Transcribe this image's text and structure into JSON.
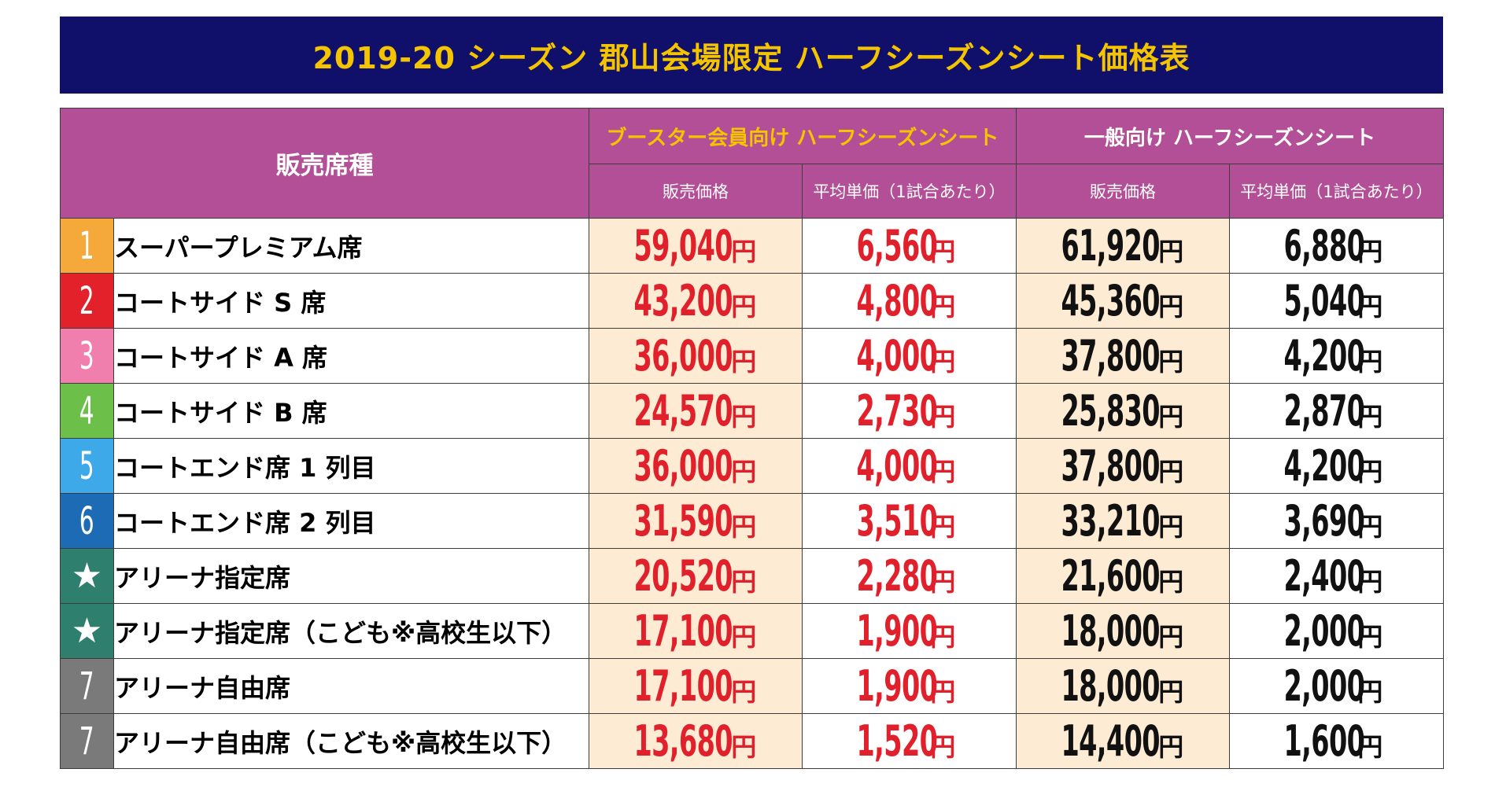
{
  "title": "2019-20 シーズン 郡山会場限定 ハーフシーズンシート価格表",
  "header": {
    "seat_type": "販売席種",
    "booster_group": "ブースター会員向け ハーフシーズンシート",
    "general_group": "一般向け ハーフシーズンシート",
    "price_label": "販売価格",
    "avg_label": "平均単価（1試合あたり）",
    "yen": "円"
  },
  "colors": {
    "title_bg": "#10106a",
    "title_text": "#f5c400",
    "header_bg": "#b34f96",
    "booster_price_bg": "#fdebd3",
    "booster_text": "#e0202a"
  },
  "rows": [
    {
      "badge": "1",
      "badge_color": "#f5a93a",
      "seat": "スーパープレミアム席",
      "b_price": "59,040",
      "b_avg": "6,560",
      "g_price": "61,920",
      "g_avg": "6,880"
    },
    {
      "badge": "2",
      "badge_color": "#e3212b",
      "seat": "コートサイド S 席",
      "b_price": "43,200",
      "b_avg": "4,800",
      "g_price": "45,360",
      "g_avg": "5,040"
    },
    {
      "badge": "3",
      "badge_color": "#f07fae",
      "seat": "コートサイド A 席",
      "b_price": "36,000",
      "b_avg": "4,000",
      "g_price": "37,800",
      "g_avg": "4,200"
    },
    {
      "badge": "4",
      "badge_color": "#6cc04a",
      "seat": "コートサイド B 席",
      "b_price": "24,570",
      "b_avg": "2,730",
      "g_price": "25,830",
      "g_avg": "2,870"
    },
    {
      "badge": "5",
      "badge_color": "#3ea9e8",
      "seat": "コートエンド席 1 列目",
      "b_price": "36,000",
      "b_avg": "4,000",
      "g_price": "37,800",
      "g_avg": "4,200"
    },
    {
      "badge": "6",
      "badge_color": "#1c6bb4",
      "seat": "コートエンド席 2 列目",
      "b_price": "31,590",
      "b_avg": "3,510",
      "g_price": "33,210",
      "g_avg": "3,690"
    },
    {
      "badge": "★",
      "badge_color": "#2f7f6e",
      "seat": "アリーナ指定席",
      "b_price": "20,520",
      "b_avg": "2,280",
      "g_price": "21,600",
      "g_avg": "2,400"
    },
    {
      "badge": "★",
      "badge_color": "#2f7f6e",
      "seat": "アリーナ指定席（こども※高校生以下）",
      "b_price": "17,100",
      "b_avg": "1,900",
      "g_price": "18,000",
      "g_avg": "2,000"
    },
    {
      "badge": "7",
      "badge_color": "#7a7a7a",
      "seat": "アリーナ自由席",
      "b_price": "17,100",
      "b_avg": "1,900",
      "g_price": "18,000",
      "g_avg": "2,000"
    },
    {
      "badge": "7",
      "badge_color": "#7a7a7a",
      "seat": "アリーナ自由席（こども※高校生以下）",
      "b_price": "13,680",
      "b_avg": "1,520",
      "g_price": "14,400",
      "g_avg": "1,600"
    }
  ]
}
